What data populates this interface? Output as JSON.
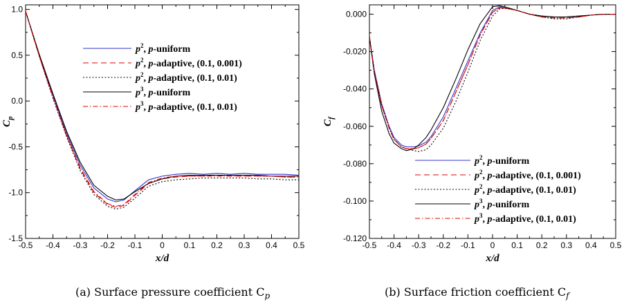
{
  "chart_data": [
    {
      "type": "line",
      "xlabel": "x/d",
      "ylabel": "C_p",
      "ylabel_main": "C",
      "ylabel_sub": "p",
      "xlim": [
        -0.5,
        0.5
      ],
      "ylim": [
        -1.5,
        1.05
      ],
      "xticks": [
        -0.5,
        -0.4,
        -0.3,
        -0.2,
        -0.1,
        0,
        0.1,
        0.2,
        0.3,
        0.4,
        0.5
      ],
      "xtick_labels": [
        "-0.5",
        "-0.4",
        "-0.3",
        "-0.2",
        "-0.1",
        "0",
        "0.1",
        "0.2",
        "0.3",
        "0.4",
        "0.5"
      ],
      "yticks": [
        -1.5,
        -1.0,
        -0.5,
        0.0,
        0.5,
        1.0
      ],
      "ytick_labels": [
        "-1.5",
        "-1.0",
        "-0.5",
        "0.0",
        "0.5",
        "1.0"
      ],
      "legend_position": "top-center",
      "caption": "(a) Surface pressure coefficient C",
      "caption_sub": "p",
      "series": [
        {
          "name": "p², p-uniform",
          "color": "#3333cc",
          "dash": "solid",
          "x": [
            -0.5,
            -0.45,
            -0.4,
            -0.35,
            -0.3,
            -0.25,
            -0.2,
            -0.17,
            -0.14,
            -0.1,
            -0.05,
            0,
            0.05,
            0.1,
            0.15,
            0.2,
            0.25,
            0.3,
            0.35,
            0.4,
            0.45,
            0.5
          ],
          "y": [
            0.98,
            0.5,
            0.06,
            -0.35,
            -0.7,
            -0.95,
            -1.07,
            -1.1,
            -1.08,
            -0.98,
            -0.86,
            -0.82,
            -0.8,
            -0.79,
            -0.8,
            -0.79,
            -0.8,
            -0.79,
            -0.8,
            -0.8,
            -0.8,
            -0.81
          ]
        },
        {
          "name": "p², p-adaptive, (0.1, 0.001)",
          "color": "#dd0000",
          "dash": "dashed",
          "x": [
            -0.5,
            -0.45,
            -0.4,
            -0.35,
            -0.3,
            -0.25,
            -0.2,
            -0.17,
            -0.14,
            -0.1,
            -0.05,
            0,
            0.05,
            0.1,
            0.15,
            0.2,
            0.25,
            0.3,
            0.35,
            0.4,
            0.45,
            0.5
          ],
          "y": [
            0.98,
            0.49,
            0.04,
            -0.38,
            -0.74,
            -1.0,
            -1.13,
            -1.16,
            -1.14,
            -1.03,
            -0.9,
            -0.85,
            -0.83,
            -0.82,
            -0.82,
            -0.81,
            -0.82,
            -0.82,
            -0.82,
            -0.82,
            -0.83,
            -0.83
          ]
        },
        {
          "name": "p², p-adaptive, (0.1, 0.01)",
          "color": "#000000",
          "dash": "dotted",
          "x": [
            -0.5,
            -0.45,
            -0.4,
            -0.35,
            -0.3,
            -0.25,
            -0.2,
            -0.17,
            -0.14,
            -0.1,
            -0.05,
            0,
            0.05,
            0.1,
            0.15,
            0.2,
            0.25,
            0.3,
            0.35,
            0.4,
            0.45,
            0.5
          ],
          "y": [
            0.98,
            0.49,
            0.03,
            -0.39,
            -0.76,
            -1.02,
            -1.15,
            -1.18,
            -1.16,
            -1.06,
            -0.93,
            -0.88,
            -0.86,
            -0.85,
            -0.84,
            -0.84,
            -0.84,
            -0.84,
            -0.85,
            -0.85,
            -0.86,
            -0.86
          ]
        },
        {
          "name": "p³, p-uniform",
          "color": "#000000",
          "dash": "solid",
          "x": [
            -0.5,
            -0.45,
            -0.4,
            -0.35,
            -0.3,
            -0.25,
            -0.2,
            -0.17,
            -0.14,
            -0.1,
            -0.05,
            0,
            0.05,
            0.1,
            0.15,
            0.2,
            0.25,
            0.3,
            0.35,
            0.4,
            0.45,
            0.5
          ],
          "y": [
            0.98,
            0.51,
            0.08,
            -0.33,
            -0.67,
            -0.92,
            -1.04,
            -1.08,
            -1.07,
            -0.99,
            -0.9,
            -0.85,
            -0.82,
            -0.81,
            -0.81,
            -0.81,
            -0.81,
            -0.81,
            -0.81,
            -0.82,
            -0.82,
            -0.82
          ]
        },
        {
          "name": "p³, p-adaptive, (0.1, 0.01)",
          "color": "#dd0000",
          "dash": "dashdot",
          "x": [
            -0.5,
            -0.45,
            -0.4,
            -0.35,
            -0.3,
            -0.25,
            -0.2,
            -0.17,
            -0.14,
            -0.1,
            -0.05,
            0,
            0.05,
            0.1,
            0.15,
            0.2,
            0.25,
            0.3,
            0.35,
            0.4,
            0.45,
            0.5
          ],
          "y": [
            0.98,
            0.49,
            0.04,
            -0.37,
            -0.73,
            -0.99,
            -1.12,
            -1.15,
            -1.13,
            -1.02,
            -0.89,
            -0.84,
            -0.82,
            -0.82,
            -0.82,
            -0.82,
            -0.82,
            -0.82,
            -0.82,
            -0.82,
            -0.83,
            -0.83
          ]
        }
      ]
    },
    {
      "type": "line",
      "xlabel": "x/d",
      "ylabel": "C_f",
      "ylabel_main": "C",
      "ylabel_sub": "f",
      "xlim": [
        -0.5,
        0.5
      ],
      "ylim": [
        -0.12,
        0.005
      ],
      "xticks": [
        -0.5,
        -0.4,
        -0.3,
        -0.2,
        -0.1,
        0,
        0.1,
        0.2,
        0.3,
        0.4,
        0.5
      ],
      "xtick_labels": [
        "-0.5",
        "-0.4",
        "-0.3",
        "-0.2",
        "-0.1",
        "0",
        "0.1",
        "0.2",
        "0.3",
        "0.4",
        "0.5"
      ],
      "yticks": [
        -0.12,
        -0.1,
        -0.08,
        -0.06,
        -0.04,
        -0.02,
        0.0
      ],
      "ytick_labels": [
        "-0.120",
        "-0.100",
        "-0.080",
        "-0.060",
        "-0.040",
        "-0.020",
        "0.000"
      ],
      "legend_position": "bottom-right",
      "caption": "(b) Surface friction coefficient C",
      "caption_sub": "f",
      "series": [
        {
          "name": "p², p-uniform",
          "color": "#3333cc",
          "dash": "solid",
          "x": [
            -0.5,
            -0.48,
            -0.45,
            -0.42,
            -0.4,
            -0.37,
            -0.35,
            -0.32,
            -0.3,
            -0.27,
            -0.25,
            -0.2,
            -0.15,
            -0.1,
            -0.05,
            0,
            0.03,
            0.06,
            0.1,
            0.15,
            0.2,
            0.25,
            0.3,
            0.35,
            0.4,
            0.45,
            0.5
          ],
          "y": [
            -0.012,
            -0.03,
            -0.048,
            -0.06,
            -0.066,
            -0.07,
            -0.071,
            -0.071,
            -0.0705,
            -0.0685,
            -0.0655,
            -0.055,
            -0.04,
            -0.025,
            -0.01,
            0.002,
            0.004,
            0.0035,
            0.002,
            0.0,
            -0.001,
            -0.0015,
            -0.0015,
            -0.001,
            -0.0005,
            0.0,
            0.0
          ]
        },
        {
          "name": "p², p-adaptive, (0.1, 0.001)",
          "color": "#dd0000",
          "dash": "dashed",
          "x": [
            -0.5,
            -0.48,
            -0.45,
            -0.42,
            -0.4,
            -0.37,
            -0.35,
            -0.32,
            -0.3,
            -0.27,
            -0.25,
            -0.2,
            -0.15,
            -0.1,
            -0.05,
            0,
            0.03,
            0.06,
            0.1,
            0.15,
            0.2,
            0.25,
            0.3,
            0.35,
            0.4,
            0.45,
            0.5
          ],
          "y": [
            -0.012,
            -0.031,
            -0.049,
            -0.061,
            -0.067,
            -0.071,
            -0.072,
            -0.072,
            -0.0715,
            -0.0695,
            -0.0665,
            -0.057,
            -0.042,
            -0.027,
            -0.011,
            0.001,
            0.0035,
            0.003,
            0.002,
            0.0,
            -0.0015,
            -0.002,
            -0.002,
            -0.0015,
            -0.0005,
            0.0,
            0.0
          ]
        },
        {
          "name": "p², p-adaptive, (0.1, 0.01)",
          "color": "#000000",
          "dash": "dotted",
          "x": [
            -0.5,
            -0.48,
            -0.45,
            -0.42,
            -0.4,
            -0.37,
            -0.35,
            -0.32,
            -0.3,
            -0.27,
            -0.25,
            -0.2,
            -0.15,
            -0.1,
            -0.05,
            0,
            0.03,
            0.06,
            0.1,
            0.15,
            0.2,
            0.25,
            0.3,
            0.35,
            0.4,
            0.45,
            0.5
          ],
          "y": [
            -0.012,
            -0.031,
            -0.049,
            -0.061,
            -0.067,
            -0.071,
            -0.072,
            -0.073,
            -0.0735,
            -0.0725,
            -0.07,
            -0.061,
            -0.047,
            -0.031,
            -0.014,
            -0.001,
            0.003,
            0.003,
            0.002,
            0.0,
            -0.0015,
            -0.0025,
            -0.0025,
            -0.0015,
            -0.0005,
            0.0,
            0.0
          ]
        },
        {
          "name": "p³, p-uniform",
          "color": "#000000",
          "dash": "solid",
          "x": [
            -0.5,
            -0.48,
            -0.45,
            -0.42,
            -0.4,
            -0.37,
            -0.35,
            -0.32,
            -0.3,
            -0.27,
            -0.25,
            -0.2,
            -0.15,
            -0.1,
            -0.05,
            0,
            0.03,
            0.06,
            0.1,
            0.15,
            0.2,
            0.25,
            0.3,
            0.35,
            0.4,
            0.45,
            0.5
          ],
          "y": [
            -0.012,
            -0.032,
            -0.052,
            -0.064,
            -0.069,
            -0.072,
            -0.073,
            -0.072,
            -0.07,
            -0.066,
            -0.062,
            -0.05,
            -0.035,
            -0.019,
            -0.005,
            0.004,
            0.0045,
            0.0035,
            0.002,
            0.0,
            -0.001,
            -0.0015,
            -0.0015,
            -0.001,
            -0.0005,
            0.0,
            0.0
          ]
        },
        {
          "name": "p³, p-adaptive, (0.1, 0.01)",
          "color": "#dd0000",
          "dash": "dashdot",
          "x": [
            -0.5,
            -0.48,
            -0.45,
            -0.42,
            -0.4,
            -0.37,
            -0.35,
            -0.32,
            -0.3,
            -0.27,
            -0.25,
            -0.2,
            -0.15,
            -0.1,
            -0.05,
            0,
            0.03,
            0.06,
            0.1,
            0.15,
            0.2,
            0.25,
            0.3,
            0.35,
            0.4,
            0.45,
            0.5
          ],
          "y": [
            -0.012,
            -0.031,
            -0.049,
            -0.061,
            -0.067,
            -0.071,
            -0.072,
            -0.072,
            -0.0715,
            -0.0695,
            -0.0665,
            -0.057,
            -0.042,
            -0.027,
            -0.011,
            0.001,
            0.0035,
            0.003,
            0.002,
            0.0,
            -0.0015,
            -0.002,
            -0.002,
            -0.0015,
            -0.0005,
            0.0,
            0.0
          ]
        }
      ]
    }
  ]
}
